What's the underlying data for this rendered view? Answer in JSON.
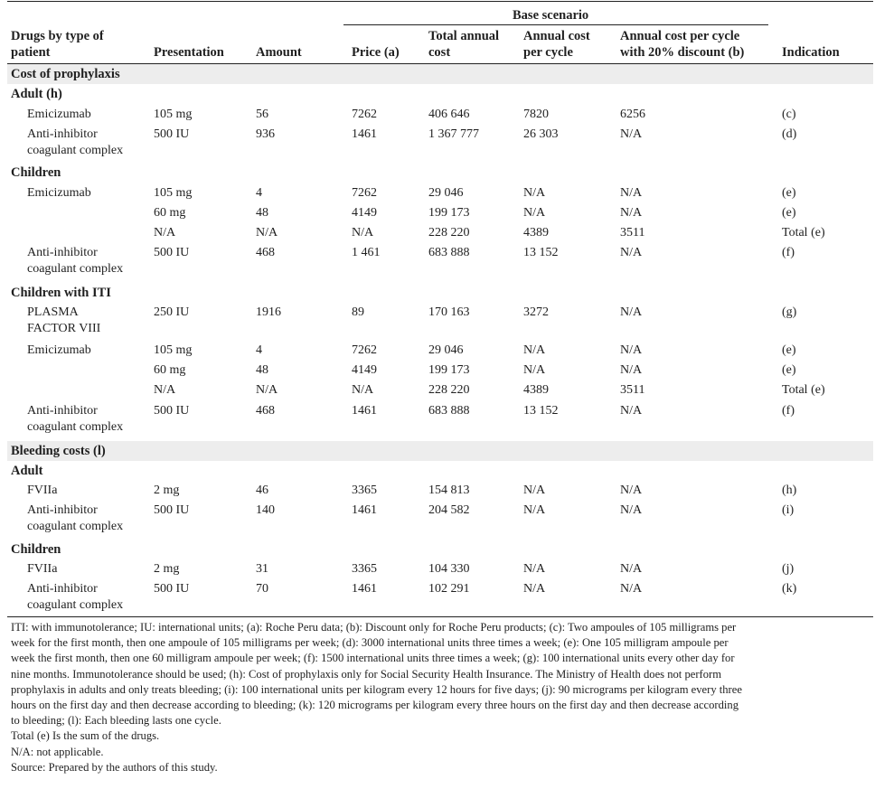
{
  "header": {
    "base_scenario": "Base scenario",
    "drugs_line1": "Drugs by type of",
    "drugs_line2": "patient",
    "presentation": "Presentation",
    "amount": "Amount",
    "price": "Price (a)",
    "total_annual_line1": "Total annual",
    "total_annual_line2": "cost",
    "annual_cycle_line1": "Annual cost",
    "annual_cycle_line2": "per cycle",
    "discount_line1": "Annual cost per cycle",
    "discount_line2": "with 20% discount (b)",
    "indication": "Indication"
  },
  "sections": {
    "prophylaxis": "Cost of prophylaxis",
    "bleeding": "Bleeding costs (l)"
  },
  "groups": {
    "adult_h": "Adult (h)",
    "children": "Children",
    "children_iti": "Children with ITI",
    "adult": "Adult",
    "children2": "Children"
  },
  "rows": [
    {
      "drug": [
        "Emicizumab"
      ],
      "presentation": "105 mg",
      "amount": "56",
      "price": "7262",
      "total": "406 646",
      "cycle": "7820",
      "discount": "6256",
      "indication": "(c)"
    },
    {
      "drug": [
        "Anti-inhibitor",
        "coagulant complex"
      ],
      "presentation": "500 IU",
      "amount": "936",
      "price": "1461",
      "total": "1 367 777",
      "cycle": "26 303",
      "discount": "N/A",
      "indication": "(d)"
    },
    {
      "drug": [
        "Emicizumab"
      ],
      "presentation": "105 mg",
      "amount": "4",
      "price": "7262",
      "total": "29 046",
      "cycle": "N/A",
      "discount": "N/A",
      "indication": "(e)"
    },
    {
      "drug": [],
      "presentation": "60 mg",
      "amount": "48",
      "price": "4149",
      "total": "199 173",
      "cycle": "N/A",
      "discount": "N/A",
      "indication": "(e)"
    },
    {
      "drug": [],
      "presentation": "N/A",
      "amount": "N/A",
      "price": "N/A",
      "total": "228 220",
      "cycle": "4389",
      "discount": "3511",
      "indication": "Total (e)"
    },
    {
      "drug": [
        "Anti-inhibitor",
        "coagulant complex"
      ],
      "presentation": "500 IU",
      "amount": "468",
      "price": "1 461",
      "total": "683 888",
      "cycle": "13 152",
      "discount": "N/A",
      "indication": "(f)"
    },
    {
      "drug": [
        "PLASMA",
        "FACTOR VIII"
      ],
      "presentation": "250 IU",
      "amount": "1916",
      "price": "89",
      "total": "170 163",
      "cycle": "3272",
      "discount": "N/A",
      "indication": "(g)"
    },
    {
      "drug": [
        "Emicizumab"
      ],
      "presentation": "105 mg",
      "amount": "4",
      "price": "7262",
      "total": "29 046",
      "cycle": "N/A",
      "discount": "N/A",
      "indication": "(e)"
    },
    {
      "drug": [],
      "presentation": "60 mg",
      "amount": "48",
      "price": "4149",
      "total": "199 173",
      "cycle": "N/A",
      "discount": "N/A",
      "indication": "(e)"
    },
    {
      "drug": [],
      "presentation": "N/A",
      "amount": "N/A",
      "price": "N/A",
      "total": "228 220",
      "cycle": "4389",
      "discount": "3511",
      "indication": "Total (e)"
    },
    {
      "drug": [
        "Anti-inhibitor",
        "coagulant complex"
      ],
      "presentation": "500 IU",
      "amount": "468",
      "price": "1461",
      "total": "683 888",
      "cycle": "13 152",
      "discount": "N/A",
      "indication": "(f)"
    },
    {
      "drug": [
        "FVIIa"
      ],
      "presentation": "2 mg",
      "amount": "46",
      "price": "3365",
      "total": "154 813",
      "cycle": "N/A",
      "discount": "N/A",
      "indication": "(h)"
    },
    {
      "drug": [
        "Anti-inhibitor",
        "coagulant complex"
      ],
      "presentation": "500 IU",
      "amount": "140",
      "price": "1461",
      "total": "204 582",
      "cycle": "N/A",
      "discount": "N/A",
      "indication": "(i)"
    },
    {
      "drug": [
        "FVIIa"
      ],
      "presentation": "2 mg",
      "amount": "31",
      "price": "3365",
      "total": "104 330",
      "cycle": "N/A",
      "discount": "N/A",
      "indication": "(j)"
    },
    {
      "drug": [
        "Anti-inhibitor",
        "coagulant complex"
      ],
      "presentation": "500 IU",
      "amount": "70",
      "price": "1461",
      "total": "102 291",
      "cycle": "N/A",
      "discount": "N/A",
      "indication": "(k)"
    }
  ],
  "footnotes": [
    "ITI: with immunotolerance; IU: international units; (a): Roche Peru data; (b): Discount only for Roche Peru products; (c): Two ampoules of 105 milligrams per",
    "week for the first month, then one ampoule of 105 milligrams per week; (d): 3000 international units three times a week; (e): One 105 milligram ampoule per",
    "week the first month, then one 60 milligram ampoule per week; (f): 1500 international units three times a week; (g): 100 international units every other day for",
    "nine months. Immunotolerance should be used; (h): Cost of prophylaxis only for Social Security Health Insurance. The Ministry of Health does not perform",
    "prophylaxis in adults and only treats bleeding; (i): 100 international units per kilogram every 12 hours for five days; (j): 90 micrograms per kilogram every three",
    "hours on the first day and then decrease according to bleeding; (k): 120 micrograms per kilogram every three hours on the first day and then decrease according",
    "to bleeding; (l): Each bleeding lasts one cycle.",
    "Total (e) Is the sum of the drugs.",
    "N/A: not applicable.",
    "Source: Prepared by the authors of this study."
  ]
}
